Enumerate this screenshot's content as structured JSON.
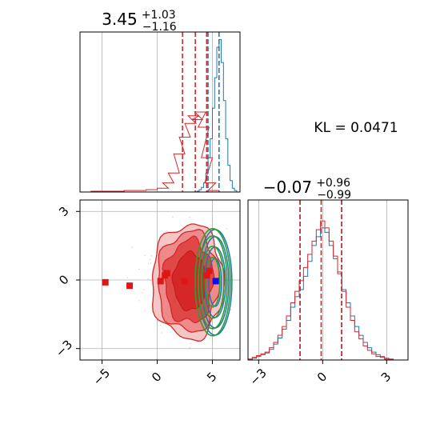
{
  "chart_data": [
    {
      "type": "histogram",
      "panel": "marginal-x",
      "title": {
        "median": "3.45",
        "plus": "+1.03",
        "minus": "−1.16"
      },
      "xlim": [
        -7,
        7.5
      ],
      "series": [
        {
          "name": "",
          "color": "#1f77b4",
          "bins": [
            3.7,
            3.9,
            4.1,
            4.3,
            4.5,
            4.7,
            4.9,
            5.1,
            5.3,
            5.5,
            5.7,
            5.9,
            6.1,
            6.3,
            6.5,
            6.7,
            6.9,
            7.1
          ],
          "values": [
            1,
            3,
            6,
            12,
            25,
            45,
            70,
            110,
            150,
            190,
            200,
            170,
            120,
            70,
            35,
            15,
            5,
            2
          ]
        },
        {
          "name": "",
          "color": "#d62728",
          "bins": [
            -5.5,
            -4.5,
            -3.5,
            -2.5,
            -1.5,
            -0.5,
            0.5,
            1.0,
            1.5,
            2.0,
            2.5,
            3.0,
            3.3,
            3.6,
            3.9,
            4.2,
            4.5,
            4.8,
            5.1
          ],
          "values": [
            1,
            1,
            1,
            2,
            2,
            3,
            5,
            12,
            25,
            50,
            72,
            90,
            100,
            95,
            105,
            85,
            45,
            12,
            2
          ]
        }
      ],
      "quantile_lines": {
        "red": [
          2.29,
          3.45,
          4.48
        ],
        "blue": [
          4.6,
          5.6
        ]
      }
    },
    {
      "type": "histogram",
      "panel": "marginal-y",
      "title": {
        "median": "−0.07",
        "plus": "+0.96",
        "minus": "−0.99"
      },
      "xlim": [
        -3.5,
        4.0
      ],
      "xticks": [
        -3,
        0,
        3
      ],
      "xtick_labels": [
        "−3",
        "0",
        "3"
      ],
      "series": [
        {
          "name": "",
          "color": "#1f77b4",
          "bins": [
            -3.4,
            -3.2,
            -3.0,
            -2.8,
            -2.6,
            -2.4,
            -2.2,
            -2.0,
            -1.8,
            -1.6,
            -1.4,
            -1.2,
            -1.0,
            -0.8,
            -0.6,
            -0.4,
            -0.2,
            0.0,
            0.2,
            0.4,
            0.6,
            0.8,
            1.0,
            1.2,
            1.4,
            1.6,
            1.8,
            2.0,
            2.2,
            2.4,
            2.6,
            2.8,
            3.0,
            3.2
          ],
          "values": [
            1,
            2,
            4,
            6,
            8,
            12,
            18,
            25,
            35,
            45,
            60,
            72,
            80,
            95,
            112,
            130,
            140,
            150,
            145,
            130,
            115,
            100,
            80,
            65,
            50,
            38,
            28,
            20,
            14,
            9,
            6,
            4,
            2,
            1
          ]
        },
        {
          "name": "",
          "color": "#d62728",
          "bins": [
            -3.4,
            -3.2,
            -3.0,
            -2.8,
            -2.6,
            -2.4,
            -2.2,
            -2.0,
            -1.8,
            -1.6,
            -1.4,
            -1.2,
            -1.0,
            -0.8,
            -0.6,
            -0.4,
            -0.2,
            0.0,
            0.2,
            0.4,
            0.6,
            0.8,
            1.0,
            1.2,
            1.4,
            1.6,
            1.8,
            2.0,
            2.2,
            2.4,
            2.6,
            2.8,
            3.0,
            3.2
          ],
          "values": [
            1,
            3,
            5,
            7,
            9,
            14,
            20,
            28,
            38,
            50,
            65,
            78,
            90,
            105,
            120,
            135,
            148,
            158,
            150,
            135,
            118,
            98,
            78,
            60,
            45,
            32,
            24,
            16,
            11,
            7,
            4,
            3,
            1,
            1
          ]
        }
      ],
      "quantile_lines": {
        "red": [
          -1.06,
          -0.07,
          0.89
        ],
        "blue": [
          -1.06,
          0.89
        ]
      }
    },
    {
      "type": "contour",
      "panel": "joint",
      "xlim": [
        -7,
        7.5
      ],
      "ylim": [
        -3.5,
        3.5
      ],
      "xticks": [
        -5,
        0,
        5
      ],
      "xtick_labels": [
        "−5",
        "0",
        "5"
      ],
      "yticks": [
        -3,
        0,
        3
      ],
      "ytick_labels": [
        "−3",
        "0",
        "3"
      ],
      "red_contour_center": [
        3.45,
        -0.07
      ],
      "red_markers": [
        [
          -4.7,
          -0.1
        ],
        [
          -2.5,
          -0.25
        ],
        [
          0.3,
          -0.05
        ],
        [
          0.7,
          0.2
        ],
        [
          0.9,
          0.3
        ],
        [
          2.5,
          -0.05
        ],
        [
          4.5,
          0.2
        ],
        [
          4.7,
          0.4
        ]
      ],
      "blue_marker": [
        5.3,
        -0.05
      ],
      "green_ellipse_center": [
        5.1,
        -0.1
      ],
      "blue_ellipse_center": [
        5.3,
        -0.1
      ]
    }
  ],
  "annotation": {
    "kl_text": "KL = 0.0471"
  }
}
